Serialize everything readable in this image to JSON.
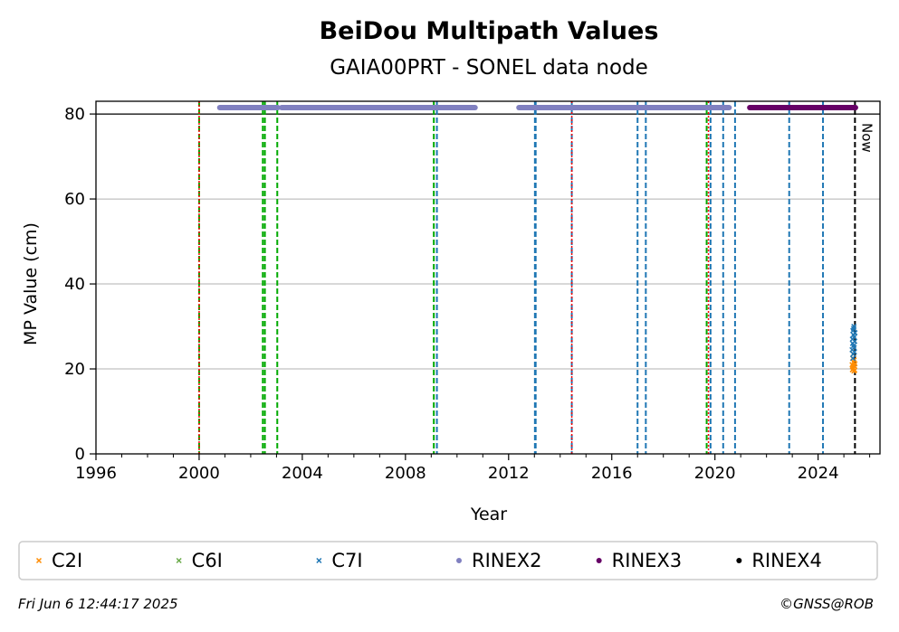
{
  "chart_data": {
    "type": "scatter",
    "title": "BeiDou Multipath Values",
    "subtitle": "GAIA00PRT - SONEL data node",
    "xlabel": "Year",
    "ylabel": "MP Value (cm)",
    "xlim": [
      1996.0,
      2026.4
    ],
    "ylim": [
      0,
      83
    ],
    "xticks": [
      1996,
      2000,
      2004,
      2008,
      2012,
      2016,
      2020,
      2024
    ],
    "yticks": [
      0,
      20,
      40,
      60,
      80
    ],
    "grid": "horizontal",
    "legend_position": "bottom",
    "now_line": {
      "x": 2025.43,
      "label": "Now",
      "color": "#000000"
    },
    "vertical_lines": [
      {
        "x": 2000.0,
        "color": "#00aa00"
      },
      {
        "x": 2000.0,
        "color": "#ff0000"
      },
      {
        "x": 2002.47,
        "color": "#00aa00"
      },
      {
        "x": 2002.55,
        "color": "#00aa00"
      },
      {
        "x": 2003.03,
        "color": "#00aa00"
      },
      {
        "x": 2009.1,
        "color": "#00aa00"
      },
      {
        "x": 2009.22,
        "color": "#1f77b4"
      },
      {
        "x": 2013.02,
        "color": "#1f77b4"
      },
      {
        "x": 2013.05,
        "color": "#1f77b4"
      },
      {
        "x": 2014.45,
        "color": "#1f77b4"
      },
      {
        "x": 2014.45,
        "color": "#ff0000"
      },
      {
        "x": 2017.0,
        "color": "#1f77b4"
      },
      {
        "x": 2017.32,
        "color": "#1f77b4"
      },
      {
        "x": 2019.68,
        "color": "#00aa00"
      },
      {
        "x": 2019.75,
        "color": "#ff0000"
      },
      {
        "x": 2019.83,
        "color": "#1f77b4"
      },
      {
        "x": 2020.32,
        "color": "#1f77b4"
      },
      {
        "x": 2020.78,
        "color": "#1f77b4"
      },
      {
        "x": 2022.88,
        "color": "#1f77b4"
      },
      {
        "x": 2024.19,
        "color": "#1f77b4"
      }
    ],
    "rinex_bars": [
      {
        "name": "RINEX2",
        "color": "#8080c0",
        "y": 81.5,
        "ranges": [
          [
            2000.8,
            2003.05
          ],
          [
            2003.2,
            2010.7
          ],
          [
            2012.4,
            2020.55
          ]
        ]
      },
      {
        "name": "RINEX3",
        "color": "#660066",
        "y": 81.5,
        "ranges": [
          [
            2021.35,
            2025.45
          ]
        ]
      }
    ],
    "series": [
      {
        "name": "C2I",
        "color": "#ff8c00",
        "marker": "x",
        "x": [
          2025.32,
          2025.33,
          2025.34,
          2025.35,
          2025.36,
          2025.37,
          2025.38,
          2025.39,
          2025.4,
          2025.41,
          2025.42,
          2025.43
        ],
        "y": [
          21.0,
          19.8,
          22.5,
          20.4,
          23.5,
          20.0,
          21.6,
          19.5,
          22.1,
          20.7,
          19.7,
          21.2
        ]
      },
      {
        "name": "C6I",
        "color": "#6aaa4a",
        "marker": "x",
        "x": [],
        "y": []
      },
      {
        "name": "C7I",
        "color": "#1f77b4",
        "marker": "x",
        "x": [
          2025.32,
          2025.33,
          2025.34,
          2025.35,
          2025.36,
          2025.37,
          2025.38,
          2025.39,
          2025.4,
          2025.41,
          2025.42,
          2025.43,
          2025.35,
          2025.38,
          2025.4
        ],
        "y": [
          24.5,
          27.0,
          26.0,
          29.0,
          23.5,
          28.0,
          25.5,
          30.0,
          27.5,
          24.0,
          26.5,
          28.5,
          22.5,
          29.5,
          25.0
        ]
      },
      {
        "name": "RINEX2",
        "color": "#8080c0",
        "marker": "o",
        "x": [],
        "y": []
      },
      {
        "name": "RINEX3",
        "color": "#660066",
        "marker": "o",
        "x": [],
        "y": []
      },
      {
        "name": "RINEX4",
        "color": "#000000",
        "marker": "o",
        "x": [],
        "y": []
      }
    ]
  },
  "footer": {
    "timestamp": "Fri Jun  6 12:44:17 2025",
    "credit": "©GNSS@ROB"
  }
}
